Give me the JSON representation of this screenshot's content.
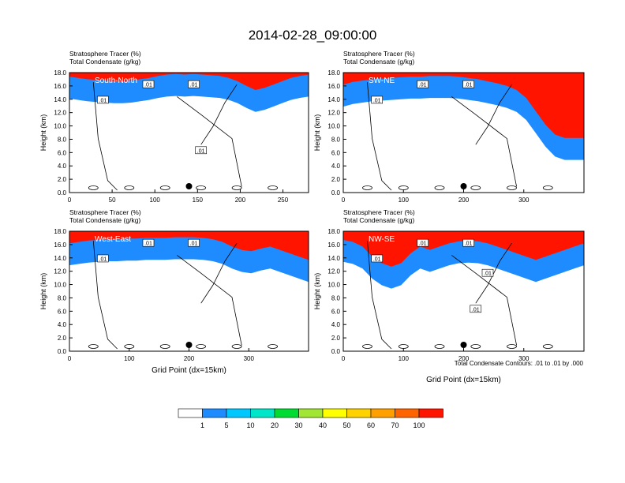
{
  "title": "2014-02-28_09:00:00",
  "footnote": "Total Condensate Contours: .01 to .01 by .000",
  "colorbar": {
    "colors": [
      "#ffffff",
      "#1e8cff",
      "#00c8ff",
      "#00e6c8",
      "#00dc32",
      "#a0e632",
      "#ffff00",
      "#ffd200",
      "#ffa000",
      "#ff6400",
      "#ff1400"
    ],
    "labels": [
      "1",
      "5",
      "10",
      "20",
      "30",
      "40",
      "50",
      "60",
      "70",
      "100"
    ]
  },
  "chart_data": [
    {
      "type": "heatmap",
      "cross_section": "South-North",
      "title_lines": [
        "Stratosphere Tracer   (%)",
        "Total Condensate   (g/kg)"
      ],
      "xlabel": "",
      "ylabel": "Height (km)",
      "xlim": [
        0,
        280
      ],
      "ylim": [
        0,
        18
      ],
      "x_ticks": [
        "0",
        "50",
        "100",
        "150",
        "200",
        "250"
      ],
      "y_ticks": [
        "0.0",
        "2.0",
        "4.0",
        "6.0",
        "8.0",
        "10.0",
        "12.0",
        "14.0",
        "16.0",
        "18.0"
      ],
      "contour_labels": [
        ".01",
        ".01",
        ".01",
        ".01"
      ],
      "tracer_top_km": [
        16.2,
        16.0,
        15.8,
        15.7,
        15.6,
        15.5,
        15.5,
        15.6,
        15.8,
        16.0,
        16.3,
        16.5,
        16.6,
        16.5,
        16.6,
        16.5,
        16.4,
        16.3,
        16.0,
        15.5,
        14.8,
        14.2,
        14.5,
        15.0,
        15.5,
        16.0,
        16.3,
        16.5
      ]
    },
    {
      "type": "heatmap",
      "cross_section": "SW-NE",
      "title_lines": [
        "Stratosphere Tracer   (%)",
        "Total Condensate   (g/kg)"
      ],
      "xlabel": "",
      "ylabel": "Height (km)",
      "xlim": [
        0,
        400
      ],
      "ylim": [
        0,
        18
      ],
      "x_ticks": [
        "0",
        "100",
        "200",
        "300"
      ],
      "y_ticks": [
        "0.0",
        "2.0",
        "4.0",
        "6.0",
        "8.0",
        "10.0",
        "12.0",
        "14.0",
        "16.0",
        "18.0"
      ],
      "contour_labels": [
        ".01",
        ".01",
        ".01"
      ],
      "tracer_top_km": [
        15.0,
        15.4,
        15.6,
        15.8,
        15.9,
        16.0,
        16.1,
        16.2,
        16.2,
        16.3,
        16.3,
        16.3,
        16.2,
        16.0,
        15.8,
        15.5,
        15.2,
        14.8,
        14.2,
        13.0,
        11.0,
        9.0,
        7.5,
        7.0,
        7.0,
        7.0
      ]
    },
    {
      "type": "heatmap",
      "cross_section": "West-East",
      "title_lines": [
        "Stratosphere Tracer   (%)",
        "Total Condensate   (g/kg)"
      ],
      "xlabel": "Grid Point (dx=15km)",
      "ylabel": "Height (km)",
      "xlim": [
        0,
        400
      ],
      "ylim": [
        0,
        18
      ],
      "x_ticks": [
        "0",
        "100",
        "200",
        "300"
      ],
      "y_ticks": [
        "0.0",
        "2.0",
        "4.0",
        "6.0",
        "8.0",
        "10.0",
        "12.0",
        "14.0",
        "16.0",
        "18.0"
      ],
      "contour_labels": [
        ".01",
        ".01",
        ".01"
      ],
      "tracer_top_km": [
        15.0,
        15.2,
        15.4,
        15.5,
        15.6,
        15.6,
        15.7,
        15.7,
        15.8,
        15.8,
        15.8,
        15.9,
        15.9,
        15.9,
        15.8,
        15.6,
        15.2,
        14.5,
        14.0,
        13.8,
        14.2,
        14.5,
        14.0,
        13.5,
        13.0,
        12.5
      ]
    },
    {
      "type": "heatmap",
      "cross_section": "NW-SE",
      "title_lines": [
        "Stratosphere Tracer   (%)",
        "Total Condensate   (g/kg)"
      ],
      "xlabel": "Grid Point (dx=15km)",
      "ylabel": "Height (km)",
      "xlim": [
        0,
        400
      ],
      "ylim": [
        0,
        18
      ],
      "x_ticks": [
        "0",
        "100",
        "200",
        "300"
      ],
      "y_ticks": [
        "0.0",
        "2.0",
        "4.0",
        "6.0",
        "8.0",
        "10.0",
        "12.0",
        "14.0",
        "16.0",
        "18.0"
      ],
      "contour_labels": [
        ".01",
        ".01",
        ".01",
        ".01",
        ".01"
      ],
      "tracer_top_km": [
        15.5,
        15.2,
        14.5,
        13.0,
        12.0,
        11.5,
        12.0,
        13.5,
        14.5,
        14.0,
        14.5,
        15.0,
        15.3,
        15.4,
        15.3,
        15.0,
        14.5,
        14.0,
        13.5,
        13.0,
        12.5,
        13.0,
        13.5,
        14.0,
        14.5,
        15.0
      ]
    }
  ]
}
